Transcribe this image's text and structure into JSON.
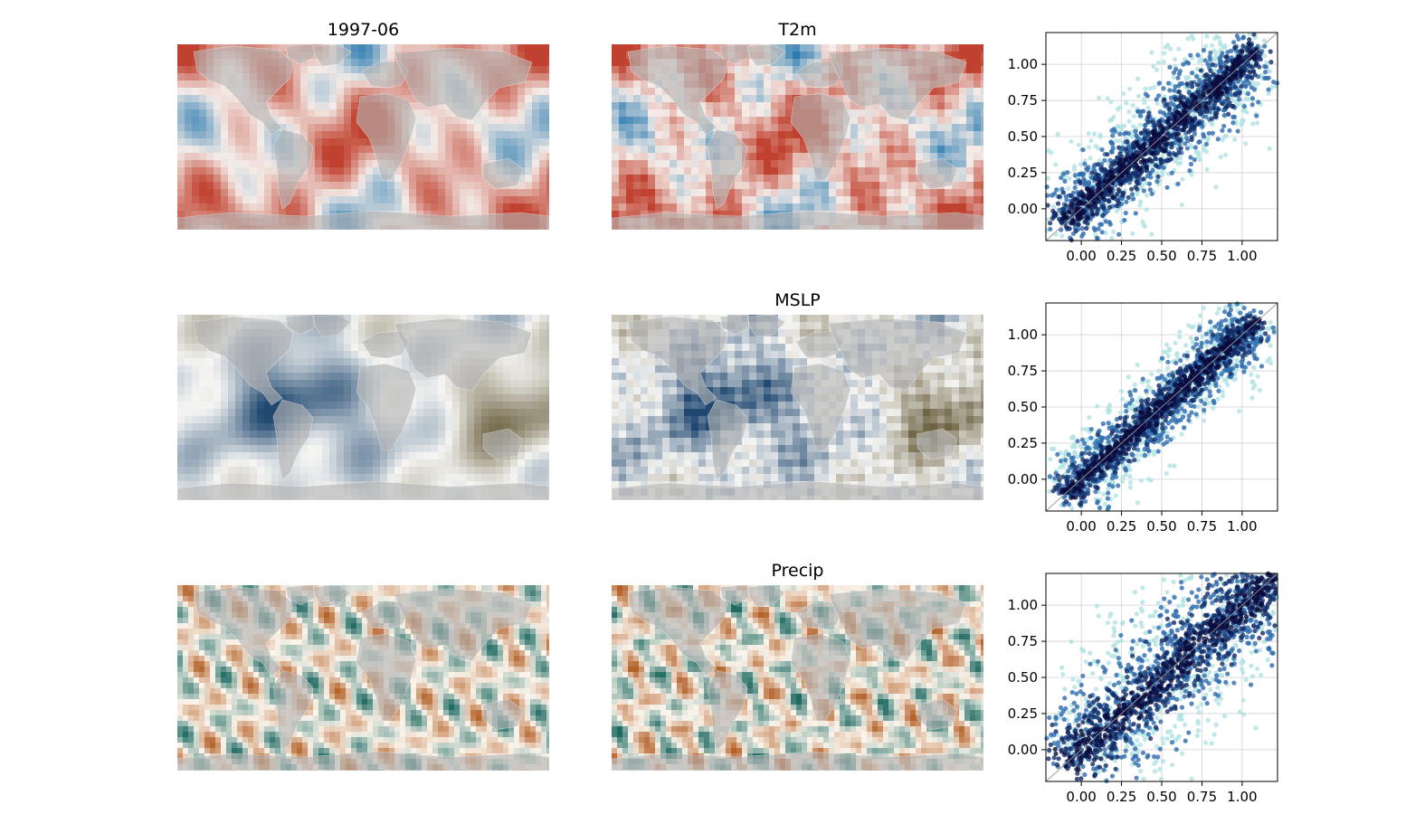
{
  "figure": {
    "date_label": "1997-06"
  },
  "rows": [
    {
      "variable": "T2m",
      "map_colors": {
        "positive": "#c0412f",
        "negative": "#2b7bb0",
        "neutral": "#f4ece8",
        "land": "#b5b5b5"
      }
    },
    {
      "variable": "MSLP",
      "map_colors": {
        "positive": "#6e6444",
        "negative": "#1f4770",
        "neutral": "#f5f5f3",
        "land": "#b5b5b5"
      }
    },
    {
      "variable": "Precip",
      "map_colors": {
        "positive": "#b4622a",
        "negative": "#1f6b63",
        "neutral": "#fbf5ec",
        "land": "#b5b5b5"
      }
    }
  ],
  "chart_data": [
    {
      "type": "scatter",
      "xlim": [
        -0.22,
        1.22
      ],
      "ylim": [
        -0.22,
        1.22
      ],
      "xticks": [
        "0.00",
        "0.25",
        "0.50",
        "0.75",
        "1.00"
      ],
      "yticks": [
        "0.00",
        "0.25",
        "0.50",
        "0.75",
        "1.00"
      ],
      "grid": true,
      "identity_line": true,
      "colormap": [
        "#b2e2e2",
        "#1f5fa8",
        "#0a0a3c"
      ]
    },
    {
      "type": "scatter",
      "xlim": [
        -0.22,
        1.22
      ],
      "ylim": [
        -0.22,
        1.22
      ],
      "xticks": [
        "0.00",
        "0.25",
        "0.50",
        "0.75",
        "1.00"
      ],
      "yticks": [
        "0.00",
        "0.25",
        "0.50",
        "0.75",
        "1.00"
      ],
      "grid": true,
      "identity_line": true,
      "colormap": [
        "#b2e2e2",
        "#1f5fa8",
        "#0a0a3c"
      ]
    },
    {
      "type": "scatter",
      "xlim": [
        -0.22,
        1.22
      ],
      "ylim": [
        -0.22,
        1.22
      ],
      "xticks": [
        "0.00",
        "0.25",
        "0.50",
        "0.75",
        "1.00"
      ],
      "yticks": [
        "0.00",
        "0.25",
        "0.50",
        "0.75",
        "1.00"
      ],
      "grid": true,
      "identity_line": true,
      "colormap": [
        "#b2e2e2",
        "#1f5fa8",
        "#0a0a3c"
      ]
    }
  ]
}
